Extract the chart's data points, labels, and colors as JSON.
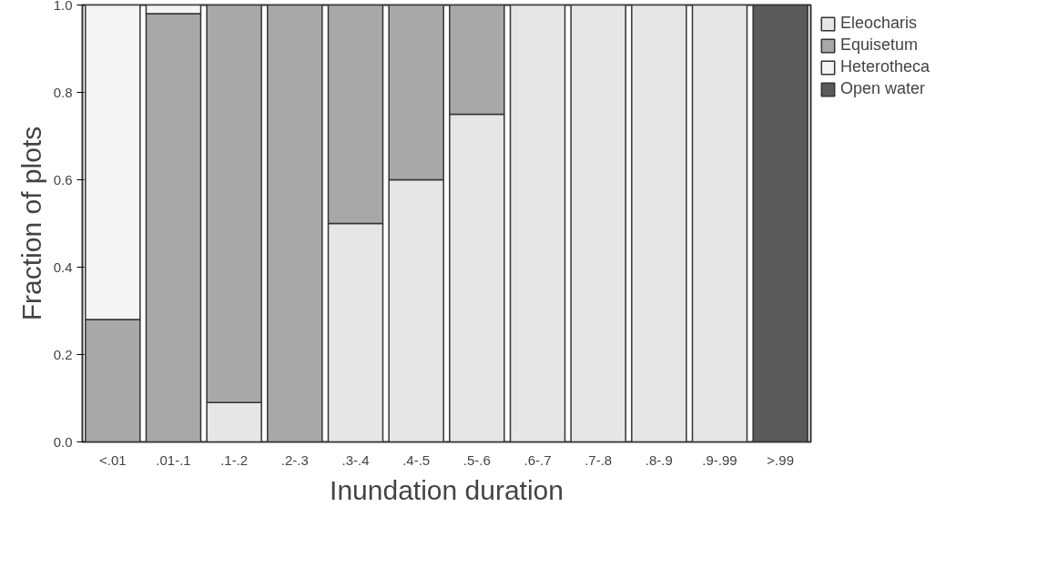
{
  "chart_data": {
    "type": "bar",
    "stacked": true,
    "xlabel": "Inundation duration",
    "ylabel": "Fraction of plots",
    "categories": [
      "<.01",
      ".01-.1",
      ".1-.2",
      ".2-.3",
      ".3-.4",
      ".4-.5",
      ".5-.6",
      ".6-.7",
      ".7-.8",
      ".8-.9",
      ".9-.99",
      ">.99"
    ],
    "series": [
      {
        "name": "Eleocharis",
        "color": "#e6e6e6",
        "values": [
          null,
          null,
          0.09,
          null,
          0.5,
          0.6,
          0.75,
          1,
          1,
          1,
          1,
          null
        ]
      },
      {
        "name": "Equisetum",
        "color": "#a8a8a8",
        "values": [
          0.28,
          0.98,
          0.91,
          1,
          0.5,
          0.4,
          0.25,
          null,
          null,
          null,
          null,
          null
        ]
      },
      {
        "name": "Heterotheca",
        "color": "#f4f4f4",
        "values": [
          0.72,
          0.02,
          null,
          null,
          null,
          null,
          null,
          null,
          null,
          null,
          null,
          null
        ]
      },
      {
        "name": "Open water",
        "color": "#5a5a5a",
        "values": [
          null,
          null,
          null,
          null,
          null,
          null,
          null,
          null,
          null,
          null,
          null,
          1
        ]
      }
    ],
    "ylim": [
      0,
      1
    ],
    "yticks": [
      {
        "value": 0,
        "label": "0.0"
      },
      0.2,
      0.4,
      0.6,
      0.8,
      {
        "value": 1,
        "label": "1.0"
      }
    ],
    "grid": false,
    "legend": "top right"
  }
}
